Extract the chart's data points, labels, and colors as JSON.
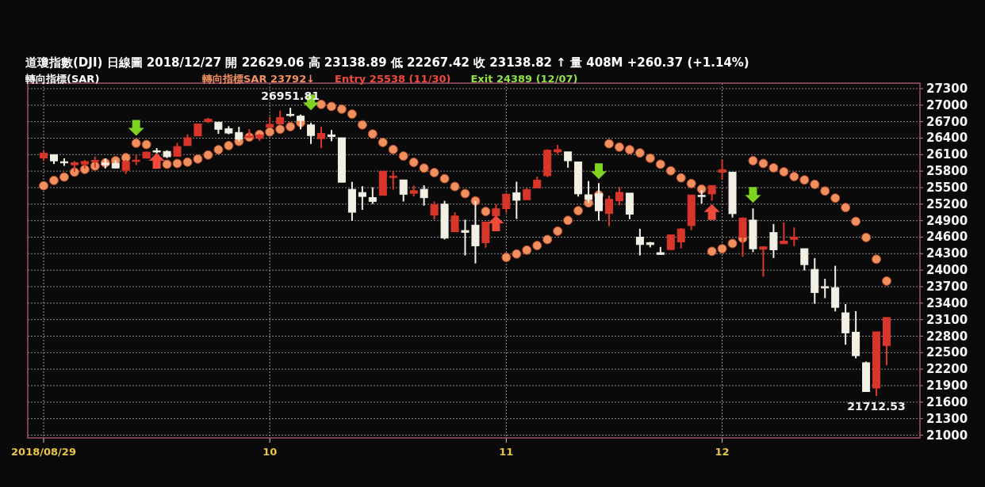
{
  "chart_data": {
    "type": "candlestick",
    "title": "道瓊指數(DJI)   日線圖   2018/12/27   開 22629.06   高 23138.89   低 22267.42   收 23138.82 ↑   量 408M   +260.37 (+1.14%)",
    "subtitle": "轉向指標(SAR)",
    "categories": [
      "2018/08/29",
      null,
      null,
      null,
      null,
      null,
      null,
      null,
      null,
      null,
      null,
      null,
      null,
      null,
      null,
      null,
      null,
      null,
      null,
      null,
      null,
      null,
      "10",
      null,
      null,
      null,
      null,
      null,
      null,
      null,
      null,
      null,
      null,
      null,
      null,
      null,
      null,
      null,
      null,
      null,
      null,
      null,
      null,
      null,
      null,
      "11",
      null,
      null,
      null,
      null,
      null,
      null,
      null,
      null,
      null,
      null,
      null,
      null,
      null,
      null,
      null,
      null,
      null,
      null,
      null,
      null,
      "12",
      null,
      null,
      null,
      null,
      null,
      null,
      null,
      null,
      null,
      null,
      null,
      null,
      null,
      null,
      null,
      null
    ],
    "ohlc": [
      [
        26040,
        26167,
        25985,
        26124.57
      ],
      [
        26100,
        26101,
        25929,
        25986.92
      ],
      [
        25972,
        26033,
        25895,
        25964.82
      ],
      [
        25916,
        25982,
        25789,
        25952.48
      ],
      [
        25930,
        26003,
        25849,
        25974.99
      ],
      [
        25980,
        26064,
        25864,
        25995.87
      ],
      [
        25946,
        26031,
        25848,
        25916.54
      ],
      [
        25940,
        25999,
        25848,
        25857.07
      ],
      [
        25815,
        26005,
        25752,
        25971.06
      ],
      [
        25990,
        26099,
        25909,
        25998.92
      ],
      [
        26037,
        26157,
        26037,
        26145.99
      ],
      [
        26170,
        26219,
        26116,
        26154.67
      ],
      [
        26158,
        26180,
        26038,
        26062.12
      ],
      [
        26071,
        26314,
        26071,
        26246.96
      ],
      [
        26265,
        26470,
        26265,
        26405.76
      ],
      [
        26440,
        26657,
        26440,
        26656.98
      ],
      [
        26700,
        26769,
        26674,
        26743.5
      ],
      [
        26690,
        26690,
        26478,
        26562.05
      ],
      [
        26570,
        26618,
        26470,
        26492.21
      ],
      [
        26503,
        26606,
        26343,
        26385.28
      ],
      [
        26410,
        26564,
        26403,
        26439.93
      ],
      [
        26398,
        26479,
        26350,
        26458.31
      ],
      [
        26598,
        26787,
        26598,
        26651.21
      ],
      [
        26660,
        26901,
        26651,
        26773.94
      ],
      [
        26833,
        26951.81,
        26789,
        26828.39
      ],
      [
        26800,
        26830,
        26560,
        26720
      ],
      [
        26640,
        26678,
        26295,
        26447.05
      ],
      [
        26391,
        26609,
        26218,
        26486.78
      ],
      [
        26460,
        26548,
        26344,
        26430.57
      ],
      [
        26406,
        26406,
        25598,
        25598.74
      ],
      [
        25469,
        25605,
        24896,
        25052.83
      ],
      [
        25411,
        25527,
        25097,
        25339.99
      ],
      [
        25320,
        25505,
        25203,
        25250.55
      ],
      [
        25361,
        25801,
        25361,
        25798.42
      ],
      [
        25695,
        25803,
        25464,
        25706.68
      ],
      [
        25640,
        25640,
        25248,
        25379.45
      ],
      [
        25396,
        25537,
        25338,
        25444.34
      ],
      [
        25470,
        25542,
        25173,
        25317.41
      ],
      [
        25000,
        25249,
        24918,
        25191.43
      ],
      [
        25200,
        25260,
        24558,
        24583.42
      ],
      [
        24700,
        25052,
        24698,
        24984.55
      ],
      [
        24720,
        24916,
        24268,
        24688.31
      ],
      [
        24818,
        25257,
        24122,
        24442.92
      ],
      [
        24500,
        24877,
        24409,
        24874.64
      ],
      [
        24990,
        25200,
        24980,
        25115.76
      ],
      [
        25118,
        25398,
        25047,
        25380.74
      ],
      [
        25407,
        25608,
        24930,
        25270.83
      ],
      [
        25281,
        25496,
        25281,
        25461.7
      ],
      [
        25497,
        25700,
        25497,
        25635.01
      ],
      [
        25718,
        26198,
        25692,
        26180.3
      ],
      [
        26150,
        26278,
        26112,
        26191.22
      ],
      [
        26150,
        26150,
        25863,
        25989.3
      ],
      [
        25968,
        25968,
        25339,
        25387.18
      ],
      [
        25370,
        25620,
        25219,
        25286.49
      ],
      [
        25388,
        25582,
        24900,
        25080.5
      ],
      [
        25030,
        25354,
        24800,
        25289.27
      ],
      [
        25263,
        25511,
        25180,
        25413.22
      ],
      [
        25400,
        25400,
        24926,
        25017.44
      ],
      [
        24600,
        24753,
        24268,
        24465.64
      ],
      [
        24500,
        24513,
        24414,
        24464.69
      ],
      [
        24318,
        24422,
        24285,
        24285.95
      ],
      [
        24374,
        24647,
        24374,
        24640.24
      ],
      [
        24514,
        24762,
        24394,
        24748.73
      ],
      [
        24810,
        25370,
        24725,
        25366.43
      ],
      [
        25360,
        25458,
        25212,
        25338.84
      ],
      [
        25386,
        25540,
        25263,
        25538.46
      ],
      [
        25780,
        26014,
        25646,
        25826.43
      ],
      [
        25781,
        25782,
        24956,
        25027.07
      ],
      [
        24600,
        24960,
        24242,
        24947.67
      ],
      [
        24910,
        25122,
        24328,
        24388.95
      ],
      [
        24380,
        24433,
        23881,
        24423.26
      ],
      [
        24683,
        24839,
        24220,
        24370.24
      ],
      [
        24480,
        24866,
        24480,
        24527.27
      ],
      [
        24560,
        24776,
        24438,
        24597.38
      ],
      [
        24390,
        24390,
        23996,
        24100.51
      ],
      [
        24014,
        24219,
        23389,
        23592.98
      ],
      [
        23700,
        23842,
        23491,
        23675.64
      ],
      [
        23682,
        24080,
        23250,
        23323.66
      ],
      [
        23224,
        23382,
        22644,
        22859.6
      ],
      [
        22871,
        23254,
        22396,
        22445.37
      ],
      [
        22317,
        22339,
        21792,
        21792.2
      ],
      [
        21857,
        22878.92,
        21712.53,
        22878.45
      ],
      [
        22629.06,
        23138.89,
        22267.42,
        23138.82
      ]
    ],
    "colors": [
      "#d9362b",
      "#f2efe4",
      "#f2efe4",
      "#d9362b",
      "#d9362b",
      "#d9362b",
      "#f2efe4",
      "#f2efe4",
      "#d9362b",
      "#d9362b",
      "#d9362b",
      "#f2efe4",
      "#f2efe4",
      "#d9362b",
      "#d9362b",
      "#d9362b",
      "#d9362b",
      "#f2efe4",
      "#f2efe4",
      "#f2efe4",
      "#d9362b",
      "#d9362b",
      "#d9362b",
      "#d9362b",
      "#f2efe4",
      "#f2efe4",
      "#f2efe4",
      "#d9362b",
      "#f2efe4",
      "#f2efe4",
      "#f2efe4",
      "#f2efe4",
      "#f2efe4",
      "#d9362b",
      "#d9362b",
      "#f2efe4",
      "#d9362b",
      "#f2efe4",
      "#d9362b",
      "#f2efe4",
      "#d9362b",
      "#f2efe4",
      "#f2efe4",
      "#d9362b",
      "#d9362b",
      "#d9362b",
      "#f2efe4",
      "#d9362b",
      "#d9362b",
      "#d9362b",
      "#d9362b",
      "#f2efe4",
      "#f2efe4",
      "#f2efe4",
      "#f2efe4",
      "#d9362b",
      "#d9362b",
      "#f2efe4",
      "#f2efe4",
      "#f2efe4",
      "#f2efe4",
      "#d9362b",
      "#d9362b",
      "#d9362b",
      "#f2efe4",
      "#d9362b",
      "#d9362b",
      "#f2efe4",
      "#d9362b",
      "#f2efe4",
      "#d9362b",
      "#f2efe4",
      "#d9362b",
      "#d9362b",
      "#f2efe4",
      "#f2efe4",
      "#f2efe4",
      "#f2efe4",
      "#f2efe4",
      "#f2efe4",
      "#f2efe4",
      "#d9362b",
      "#d9362b"
    ],
    "series": [
      {
        "name": "轉向指標SAR 23792↓",
        "type": "scatter",
        "marker": "circle",
        "color": "#f0905e",
        "values": [
          25535,
          25631,
          25693,
          25783,
          25832,
          25893,
          25950,
          25989,
          26046,
          26309,
          26284,
          null,
          25926,
          25940,
          25965,
          26022,
          26094,
          26190,
          26265,
          26341,
          26419,
          26466,
          26513,
          26562,
          26609,
          26681,
          null,
          27014,
          26977,
          26928,
          26838,
          26642,
          26476,
          26323,
          26194,
          26075,
          25960,
          25855,
          25774,
          25664,
          25521,
          25392,
          25259,
          25067,
          null,
          24232,
          24294,
          24365,
          24447,
          24557,
          24709,
          24905,
          25081,
          25224,
          25368,
          26298,
          26237,
          26190,
          26132,
          26036,
          25926,
          25807,
          25678,
          25574,
          25474,
          24342,
          24389,
          24485,
          24580,
          25990,
          25940,
          25860,
          25788,
          25702,
          25640,
          25560,
          25439,
          25310,
          25138,
          24886,
          24594,
          24199,
          23802
        ]
      },
      {
        "type": "scatter",
        "marker": "triangle_down",
        "color": "#7ed321",
        "values": [
          null,
          null,
          null,
          null,
          null,
          null,
          null,
          null,
          null,
          26585,
          null,
          null,
          null,
          null,
          null,
          null,
          null,
          null,
          null,
          null,
          null,
          null,
          null,
          null,
          null,
          null,
          27050,
          null,
          null,
          null,
          null,
          null,
          null,
          null,
          null,
          null,
          null,
          null,
          null,
          null,
          null,
          null,
          null,
          null,
          null,
          null,
          null,
          null,
          null,
          null,
          null,
          null,
          null,
          null,
          25797,
          null,
          null,
          null,
          null,
          null,
          null,
          null,
          null,
          null,
          null,
          null,
          null,
          null,
          null,
          25368,
          null,
          null,
          null,
          null,
          null,
          null,
          null,
          null,
          null,
          null,
          null,
          null,
          null
        ]
      },
      {
        "type": "scatter",
        "marker": "triangle",
        "color": "#f04a3a",
        "values": [
          null,
          null,
          null,
          null,
          null,
          null,
          null,
          null,
          null,
          null,
          null,
          25989,
          null,
          null,
          null,
          null,
          null,
          null,
          null,
          null,
          null,
          null,
          null,
          null,
          null,
          null,
          null,
          null,
          null,
          null,
          null,
          null,
          null,
          null,
          null,
          null,
          null,
          null,
          null,
          null,
          null,
          null,
          null,
          null,
          24852,
          null,
          null,
          null,
          null,
          null,
          null,
          null,
          null,
          null,
          null,
          null,
          null,
          null,
          null,
          null,
          null,
          null,
          null,
          null,
          null,
          25058,
          null,
          null,
          null,
          null,
          null,
          null,
          null,
          null,
          null,
          null,
          null,
          null,
          null,
          null,
          null,
          null,
          null
        ]
      }
    ],
    "ylim": [
      20950,
      27400
    ],
    "yticks": [
      21000,
      21300,
      21600,
      21900,
      22200,
      22500,
      22800,
      23100,
      23400,
      23700,
      24000,
      24300,
      24600,
      24900,
      25200,
      25500,
      25800,
      26100,
      26400,
      26700,
      27000,
      27300
    ],
    "grid": true,
    "legend": "top left",
    "annotations": [
      "26951.81",
      "21712.53",
      "Entry 25538 (11/30)",
      "Exit 24389 (12/07)"
    ]
  }
}
